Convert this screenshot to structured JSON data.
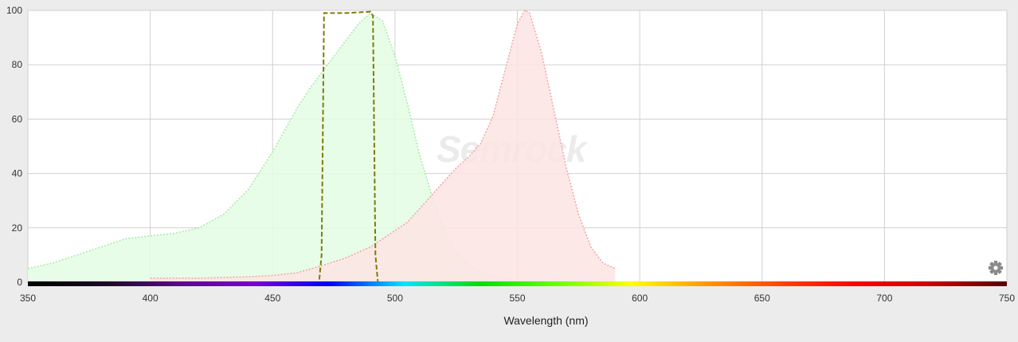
{
  "chart_data": {
    "type": "area",
    "title": "",
    "xlabel": "Wavelength (nm)",
    "ylabel": "",
    "xlim": [
      350,
      750
    ],
    "ylim": [
      0,
      100
    ],
    "x_ticks": [
      "350",
      "400",
      "450",
      "500",
      "550",
      "600",
      "650",
      "700",
      "750"
    ],
    "y_ticks": [
      "0",
      "20",
      "40",
      "60",
      "80",
      "100"
    ],
    "grid": true,
    "legend": "none",
    "series": [
      {
        "style": "dotted-filled",
        "fill_color": "#e4fde4",
        "line_color": "#a8eca8",
        "x": [
          350,
          360,
          370,
          380,
          390,
          400,
          410,
          420,
          430,
          440,
          450,
          455,
          460,
          465,
          470,
          475,
          480,
          485,
          490,
          495,
          500,
          505,
          510,
          515,
          520,
          525,
          530,
          540,
          550,
          560,
          570,
          580,
          590
        ],
        "y": [
          5,
          7,
          10,
          13,
          16,
          17,
          18,
          20,
          25,
          34,
          48,
          56,
          64,
          71,
          77,
          83,
          89,
          95,
          99,
          96,
          83,
          66,
          47,
          32,
          19,
          11,
          6,
          2,
          0.5,
          0.2,
          0,
          0,
          0
        ]
      },
      {
        "style": "dotted-filled",
        "fill_color": "#fde4e4",
        "line_color": "#f2a8a8",
        "x": [
          400,
          420,
          440,
          450,
          460,
          470,
          480,
          490,
          500,
          505,
          510,
          515,
          520,
          525,
          530,
          535,
          540,
          545,
          550,
          553,
          555,
          560,
          565,
          570,
          575,
          580,
          585,
          590
        ],
        "y": [
          1.5,
          1.5,
          2,
          2.5,
          3.5,
          6,
          9,
          13,
          19,
          22,
          27,
          32,
          37,
          42,
          46,
          51,
          61,
          78,
          95,
          100,
          99,
          84,
          63,
          42,
          25,
          13,
          7,
          5
        ]
      },
      {
        "style": "dashed",
        "line_color": "#7d7d0c",
        "x": [
          350,
          469,
          470,
          471,
          480,
          490,
          491,
          492,
          493,
          750
        ],
        "y": [
          0,
          0,
          10,
          99,
          99,
          99.5,
          98,
          10,
          0,
          0
        ]
      }
    ],
    "watermark": "Semrock"
  },
  "icons": {
    "settings": "gear-icon"
  },
  "colors": {
    "background": "#ececec",
    "plot_background": "#ffffff",
    "grid": "#d0d0d0",
    "spectrum": [
      "#000000",
      "#1a0a22",
      "#5a0a8a",
      "#7a00d0",
      "#0000ff",
      "#00e5ff",
      "#00e000",
      "#66ff00",
      "#ffff00",
      "#ff9900",
      "#ff4400",
      "#ff0000",
      "#cc0000",
      "#5a0000"
    ]
  }
}
